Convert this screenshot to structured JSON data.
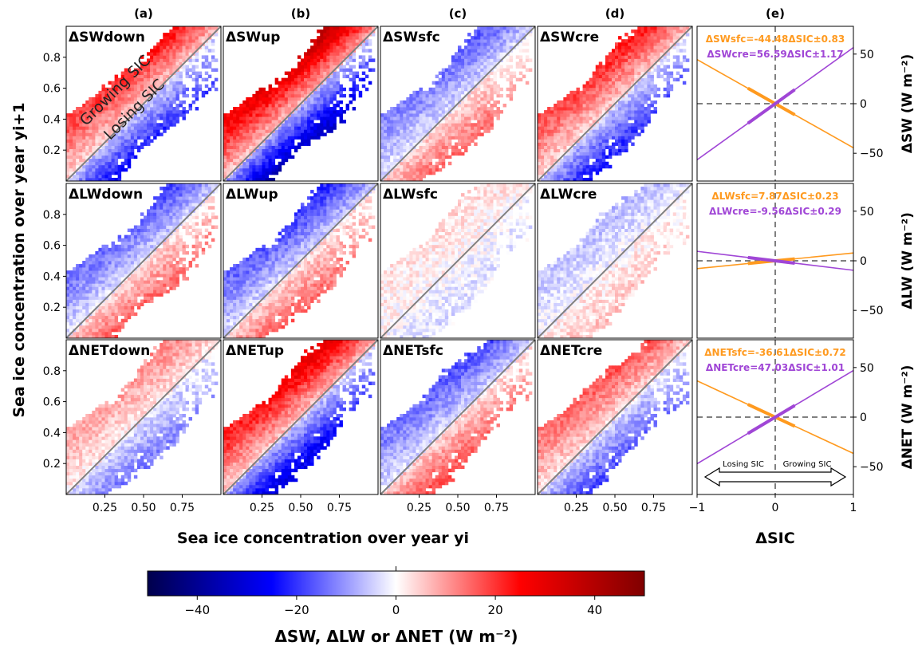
{
  "chart_data": {
    "type": "heatmap",
    "column_labels": [
      "(a)",
      "(b)",
      "(c)",
      "(d)",
      "(e)"
    ],
    "x_axis_label": "Sea ice concentration over year yi",
    "y_axis_label": "Sea ice concentration over year yi+1",
    "heatmap_xticks": [
      "0.25",
      "0.50",
      "0.75"
    ],
    "heatmap_yticks": [
      "0.2",
      "0.4",
      "0.6",
      "0.8"
    ],
    "heatmap_xlim": [
      0,
      1
    ],
    "heatmap_ylim": [
      0,
      1
    ],
    "region_labels": [
      "Growing SIC",
      "Losing SIC"
    ],
    "panel_titles": [
      [
        "ΔSWdown",
        "ΔSWup",
        "ΔSWsfc",
        "ΔSWcre"
      ],
      [
        "ΔLWdown",
        "ΔLWup",
        "ΔLWsfc",
        "ΔLWcre"
      ],
      [
        "ΔNETdown",
        "ΔNETup",
        "ΔNETsfc",
        "ΔNETcre"
      ]
    ],
    "panel_color_scale": [
      [
        {
          "above": 22,
          "below": -22
        },
        {
          "above": 32,
          "below": -32
        },
        {
          "above": -14,
          "below": 14
        },
        {
          "above": 20,
          "below": -20
        }
      ],
      [
        {
          "above": -16,
          "below": 15
        },
        {
          "above": -18,
          "below": 14
        },
        {
          "above": 3,
          "below": -3
        },
        {
          "above": -6,
          "below": 5
        }
      ],
      [
        {
          "above": 10,
          "below": -12
        },
        {
          "above": 26,
          "below": -26
        },
        {
          "above": -16,
          "below": 16
        },
        {
          "above": 16,
          "below": -16
        }
      ]
    ],
    "colorbar": {
      "label": "ΔSW, ΔLW or ΔNET (W m⁻²)",
      "range": [
        -50,
        50
      ],
      "ticks": [
        "−40",
        "−20",
        "0",
        "20",
        "40"
      ],
      "colormap": "seismic"
    },
    "line_panels": {
      "xlabel": "ΔSIC",
      "xlim": [
        -1,
        1
      ],
      "ylim": [
        -78,
        78
      ],
      "xticks": [
        "−1",
        "0",
        "1"
      ],
      "yticks": [
        "−50",
        "0",
        "50"
      ],
      "rows": [
        {
          "ylabel": "ΔSW (W m⁻²)",
          "annotations": [
            "ΔSWsfc=-44.48ΔSIC±0.83",
            "ΔSWcre=56.59ΔSIC±1.17"
          ],
          "series": [
            {
              "name": "ΔSWsfc",
              "slope": -44.48,
              "color": "#ff9a1f"
            },
            {
              "name": "ΔSWcre",
              "slope": 56.59,
              "color": "#a046d6"
            }
          ]
        },
        {
          "ylabel": "ΔLW (W m⁻²)",
          "annotations": [
            "ΔLWsfc=7.87ΔSIC±0.23",
            "ΔLWcre=-9.56ΔSIC±0.29"
          ],
          "series": [
            {
              "name": "ΔLWsfc",
              "slope": 7.87,
              "color": "#ff9a1f"
            },
            {
              "name": "ΔLWcre",
              "slope": -9.56,
              "color": "#a046d6"
            }
          ]
        },
        {
          "ylabel": "ΔNET (W m⁻²)",
          "annotations": [
            "ΔNETsfc=-36.61ΔSIC±0.72",
            "ΔNETcre=47.03ΔSIC±1.01"
          ],
          "series": [
            {
              "name": "ΔNETsfc",
              "slope": -36.61,
              "color": "#ff9a1f"
            },
            {
              "name": "ΔNETcre",
              "slope": 47.03,
              "color": "#a046d6"
            }
          ]
        }
      ],
      "arrow_labels": [
        "Losing SIC",
        "Growing SIC"
      ]
    }
  }
}
